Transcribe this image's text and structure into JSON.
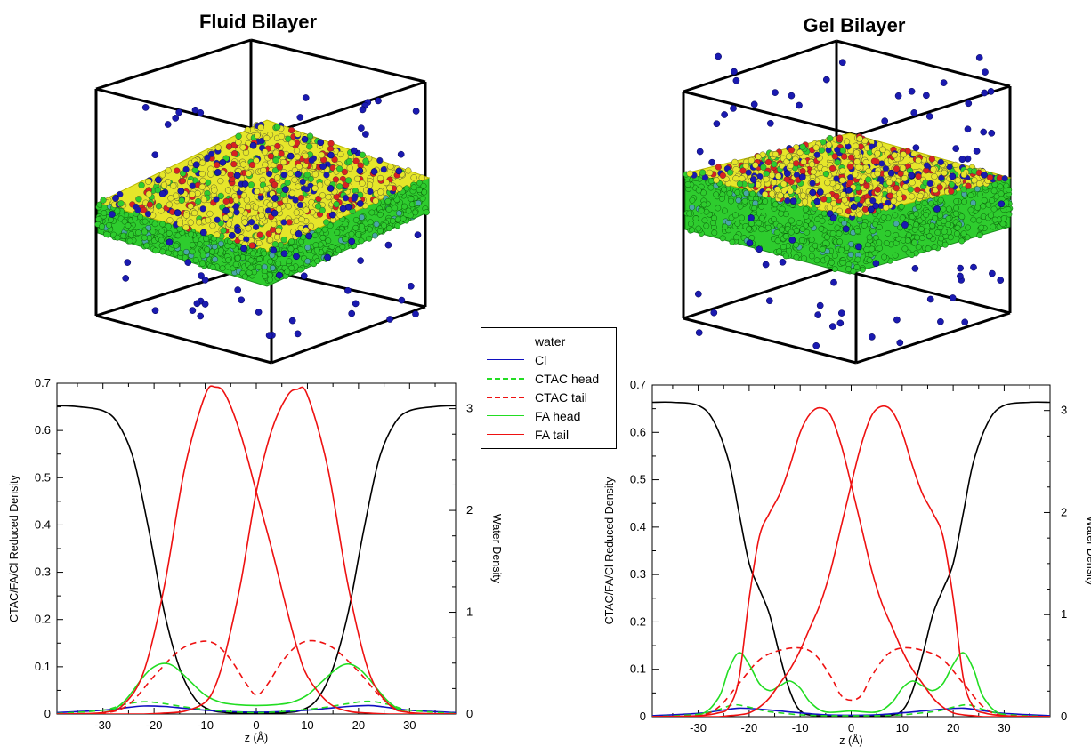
{
  "titles": {
    "left": "Fluid Bilayer",
    "right": "Gel Bilayer"
  },
  "legend": [
    {
      "label": "water",
      "color": "#000000",
      "dash": false
    },
    {
      "label": "Cl",
      "color": "#1010c0",
      "dash": false
    },
    {
      "label": "CTAC head",
      "color": "#22dd22",
      "dash": true
    },
    {
      "label": "CTAC tail",
      "color": "#ee1111",
      "dash": true
    },
    {
      "label": "FA head",
      "color": "#22dd22",
      "dash": false
    },
    {
      "label": "FA tail",
      "color": "#ee1111",
      "dash": false
    }
  ],
  "snapshot_colors": {
    "chloride": "#1a1ab0",
    "ctac_head": "#e6e62a",
    "tail": "#2ecc2e",
    "fa_head": "#d82222",
    "ctac_tail": "#4aa6a6"
  },
  "chart_data": [
    {
      "type": "line",
      "xlabel": "z (Å)",
      "ylabel": "CTAC/FA/Cl Reduced Density",
      "y2label": "Water Density",
      "xlim": [
        -39,
        39
      ],
      "ylim": [
        0,
        0.7
      ],
      "y2lim": [
        0,
        3.25
      ],
      "xticks": [
        -30,
        -20,
        -10,
        0,
        10,
        20,
        30
      ],
      "yticks": [
        0,
        0.1,
        0.2,
        0.3,
        0.4,
        0.5,
        0.6,
        0.7
      ],
      "y2ticks": [
        0,
        1,
        2,
        3
      ],
      "series": [
        {
          "name": "water",
          "axis": "right",
          "x": [
            -39,
            -35,
            -30,
            -27,
            -24,
            -21,
            -18,
            -15,
            -12,
            -9,
            -6,
            -3,
            0,
            3,
            6,
            9,
            12,
            15,
            18,
            21,
            24,
            27,
            30,
            35,
            39
          ],
          "values": [
            3.03,
            3.02,
            2.98,
            2.85,
            2.5,
            1.8,
            1.0,
            0.45,
            0.15,
            0.04,
            0.015,
            0.01,
            0.01,
            0.01,
            0.015,
            0.04,
            0.15,
            0.45,
            1.0,
            1.8,
            2.5,
            2.85,
            2.98,
            3.02,
            3.03
          ]
        },
        {
          "name": "Cl",
          "axis": "left",
          "x": [
            -39,
            -30,
            -25,
            -22,
            -18,
            -14,
            -10,
            -5,
            0,
            5,
            10,
            14,
            18,
            22,
            25,
            30,
            39
          ],
          "values": [
            0.003,
            0.008,
            0.014,
            0.017,
            0.016,
            0.012,
            0.008,
            0.005,
            0.004,
            0.005,
            0.008,
            0.012,
            0.016,
            0.018,
            0.015,
            0.008,
            0.003
          ]
        },
        {
          "name": "CTAC head",
          "axis": "left",
          "x": [
            -39,
            -30,
            -26,
            -22,
            -18,
            -14,
            -10,
            -5,
            0,
            5,
            10,
            14,
            18,
            22,
            26,
            30,
            39
          ],
          "values": [
            0.001,
            0.008,
            0.02,
            0.026,
            0.022,
            0.015,
            0.01,
            0.005,
            0.003,
            0.005,
            0.01,
            0.015,
            0.022,
            0.027,
            0.02,
            0.008,
            0.001
          ]
        },
        {
          "name": "CTAC tail",
          "axis": "left",
          "x": [
            -39,
            -30,
            -25,
            -20,
            -15,
            -11,
            -8,
            -5,
            -2,
            0,
            2,
            5,
            8,
            11,
            15,
            20,
            25,
            30,
            39
          ],
          "values": [
            0.0,
            0.002,
            0.02,
            0.08,
            0.135,
            0.153,
            0.148,
            0.115,
            0.065,
            0.04,
            0.06,
            0.11,
            0.145,
            0.155,
            0.14,
            0.09,
            0.03,
            0.003,
            0.0
          ]
        },
        {
          "name": "FA head",
          "axis": "left",
          "x": [
            -39,
            -30,
            -26,
            -22,
            -20,
            -18,
            -16,
            -13,
            -10,
            -7,
            -4,
            0,
            4,
            7,
            10,
            13,
            16,
            18,
            20,
            22,
            26,
            30,
            39
          ],
          "values": [
            0.0,
            0.003,
            0.025,
            0.08,
            0.1,
            0.107,
            0.1,
            0.07,
            0.04,
            0.025,
            0.02,
            0.018,
            0.02,
            0.025,
            0.04,
            0.07,
            0.098,
            0.106,
            0.097,
            0.075,
            0.025,
            0.003,
            0.0
          ]
        },
        {
          "name": "FA tail",
          "axis": "left",
          "x": [
            -39,
            -30,
            -26,
            -22,
            -18,
            -14,
            -10,
            -8,
            -6,
            -3,
            0,
            3,
            6,
            8,
            10,
            14,
            18,
            22,
            26,
            30,
            39
          ],
          "values": [
            0.0,
            0.003,
            0.02,
            0.09,
            0.27,
            0.52,
            0.675,
            0.692,
            0.675,
            0.59,
            0.47,
            0.35,
            0.22,
            0.14,
            0.08,
            0.025,
            0.006,
            0.002,
            0.0,
            0.0,
            0.0
          ]
        },
        {
          "name": "FA tail",
          "axis": "left",
          "x": [
            -39,
            -30,
            -26,
            -22,
            -18,
            -14,
            -10,
            -8,
            -6,
            -3,
            0,
            3,
            6,
            8,
            10,
            14,
            18,
            22,
            26,
            30,
            39
          ],
          "values": [
            0.0,
            0.0,
            0.0,
            0.0,
            0.002,
            0.006,
            0.025,
            0.06,
            0.13,
            0.28,
            0.47,
            0.6,
            0.672,
            0.687,
            0.675,
            0.52,
            0.27,
            0.09,
            0.02,
            0.003,
            0.0
          ]
        }
      ]
    },
    {
      "type": "line",
      "xlabel": "z (Å)",
      "ylabel": "CTAC/FA/Cl Reduced Density",
      "y2label": "Water Density",
      "xlim": [
        -39,
        39
      ],
      "ylim": [
        0,
        0.7
      ],
      "y2lim": [
        0,
        3.25
      ],
      "xticks": [
        -30,
        -20,
        -10,
        0,
        10,
        20,
        30
      ],
      "yticks": [
        0,
        0.1,
        0.2,
        0.3,
        0.4,
        0.5,
        0.6,
        0.7
      ],
      "y2ticks": [
        0,
        1,
        2,
        3
      ],
      "series": [
        {
          "name": "water",
          "axis": "right",
          "x": [
            -39,
            -35,
            -30,
            -27,
            -24,
            -22,
            -20,
            -18,
            -16,
            -14,
            -12,
            -10,
            -7,
            0,
            7,
            10,
            12,
            14,
            16,
            18,
            20,
            22,
            24,
            27,
            30,
            35,
            39
          ],
          "values": [
            3.08,
            3.08,
            3.05,
            2.9,
            2.5,
            2.0,
            1.5,
            1.25,
            1.0,
            0.6,
            0.25,
            0.06,
            0.01,
            0.01,
            0.01,
            0.06,
            0.25,
            0.6,
            1.0,
            1.25,
            1.5,
            2.0,
            2.5,
            2.9,
            3.05,
            3.08,
            3.08
          ]
        },
        {
          "name": "Cl",
          "axis": "left",
          "x": [
            -39,
            -30,
            -25,
            -22,
            -18,
            -14,
            -10,
            -5,
            0,
            5,
            10,
            14,
            18,
            22,
            25,
            30,
            39
          ],
          "values": [
            0.002,
            0.007,
            0.014,
            0.018,
            0.016,
            0.012,
            0.008,
            0.004,
            0.003,
            0.004,
            0.008,
            0.012,
            0.016,
            0.018,
            0.014,
            0.007,
            0.002
          ]
        },
        {
          "name": "CTAC head",
          "axis": "left",
          "x": [
            -39,
            -30,
            -26,
            -23,
            -20,
            -17,
            -14,
            -10,
            -5,
            0,
            5,
            10,
            14,
            17,
            20,
            23,
            26,
            30,
            39
          ],
          "values": [
            0.0,
            0.005,
            0.015,
            0.025,
            0.02,
            0.012,
            0.008,
            0.004,
            0.002,
            0.002,
            0.002,
            0.004,
            0.008,
            0.012,
            0.02,
            0.025,
            0.015,
            0.005,
            0.0
          ]
        },
        {
          "name": "CTAC tail",
          "axis": "left",
          "x": [
            -39,
            -30,
            -26,
            -22,
            -18,
            -14,
            -10,
            -7,
            -4,
            -2,
            0,
            2,
            4,
            7,
            10,
            14,
            18,
            22,
            26,
            30,
            39
          ],
          "values": [
            0.0,
            0.002,
            0.02,
            0.07,
            0.12,
            0.14,
            0.145,
            0.13,
            0.085,
            0.045,
            0.035,
            0.045,
            0.085,
            0.13,
            0.145,
            0.14,
            0.12,
            0.07,
            0.02,
            0.002,
            0.0
          ]
        },
        {
          "name": "FA head",
          "axis": "left",
          "x": [
            -39,
            -30,
            -26,
            -24,
            -22,
            -20,
            -18,
            -16,
            -14,
            -12,
            -10,
            -8,
            -5,
            0,
            5,
            8,
            10,
            12,
            14,
            16,
            18,
            20,
            22,
            24,
            26,
            30,
            39
          ],
          "values": [
            0.0,
            0.003,
            0.04,
            0.1,
            0.135,
            0.11,
            0.07,
            0.055,
            0.065,
            0.075,
            0.06,
            0.03,
            0.01,
            0.012,
            0.01,
            0.03,
            0.06,
            0.075,
            0.065,
            0.055,
            0.07,
            0.11,
            0.135,
            0.1,
            0.04,
            0.003,
            0.0
          ]
        },
        {
          "name": "FA tail",
          "axis": "left",
          "x": [
            -39,
            -30,
            -26,
            -24,
            -22,
            -20,
            -18,
            -16,
            -14,
            -12,
            -10,
            -8,
            -6,
            -4,
            -2,
            0,
            2,
            4,
            6,
            8,
            10,
            12,
            14,
            16,
            18,
            20,
            22,
            24,
            26,
            30,
            39
          ],
          "values": [
            0.0,
            0.002,
            0.008,
            0.02,
            0.08,
            0.25,
            0.38,
            0.43,
            0.47,
            0.53,
            0.6,
            0.64,
            0.652,
            0.635,
            0.575,
            0.49,
            0.4,
            0.31,
            0.24,
            0.19,
            0.14,
            0.1,
            0.07,
            0.04,
            0.02,
            0.008,
            0.004,
            0.002,
            0.0,
            0.0,
            0.0
          ]
        },
        {
          "name": "FA tail",
          "axis": "left",
          "x": [
            -39,
            -30,
            -26,
            -24,
            -22,
            -20,
            -18,
            -16,
            -14,
            -12,
            -10,
            -8,
            -6,
            -4,
            -2,
            0,
            2,
            4,
            6,
            8,
            10,
            12,
            14,
            16,
            18,
            20,
            22,
            24,
            26,
            30,
            39
          ],
          "values": [
            0.0,
            0.0,
            0.0,
            0.002,
            0.004,
            0.008,
            0.02,
            0.04,
            0.07,
            0.1,
            0.14,
            0.19,
            0.24,
            0.31,
            0.4,
            0.49,
            0.575,
            0.635,
            0.655,
            0.645,
            0.6,
            0.53,
            0.47,
            0.43,
            0.38,
            0.25,
            0.08,
            0.02,
            0.008,
            0.002,
            0.0
          ]
        }
      ]
    }
  ]
}
